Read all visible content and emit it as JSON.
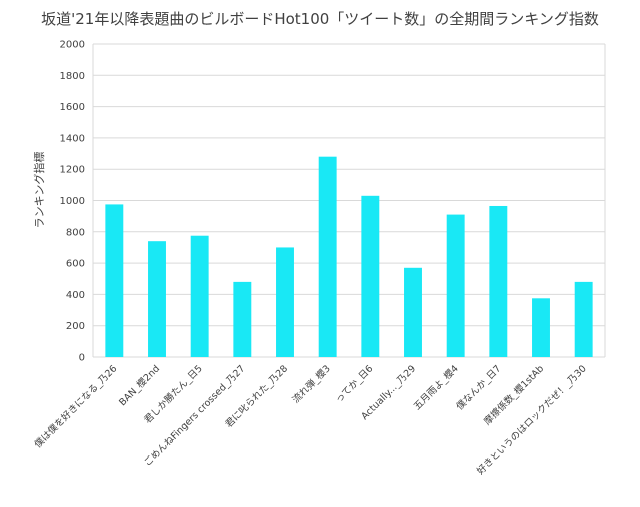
{
  "chart_data": {
    "type": "bar",
    "title": "坂道'21年以降表題曲のビルボードHot100「ツイート数」の全期間ランキング指数",
    "xlabel": "",
    "ylabel": "ランキング指標",
    "ylim": [
      0,
      2000
    ],
    "yticks": [
      0,
      200,
      400,
      600,
      800,
      1000,
      1200,
      1400,
      1600,
      1800,
      2000
    ],
    "grid": true,
    "legend": "none",
    "bar_color": "#19E8F5",
    "categories": [
      "僕は僕を好きになる_乃26",
      "BAN_櫻2nd",
      "君しか勝たん_日5",
      "ごめんねFingers crossed_乃27",
      "君に叱られた_乃28",
      "流れ弾_櫻3",
      "ってか_日6",
      "Actually..._乃29",
      "五月雨よ_櫻4",
      "僕なんか_日7",
      "摩擦係数_櫻1stAb",
      "好きというのはロックだぜ！_乃30"
    ],
    "values": [
      975,
      740,
      775,
      480,
      700,
      1280,
      1030,
      570,
      910,
      965,
      375,
      480
    ]
  }
}
